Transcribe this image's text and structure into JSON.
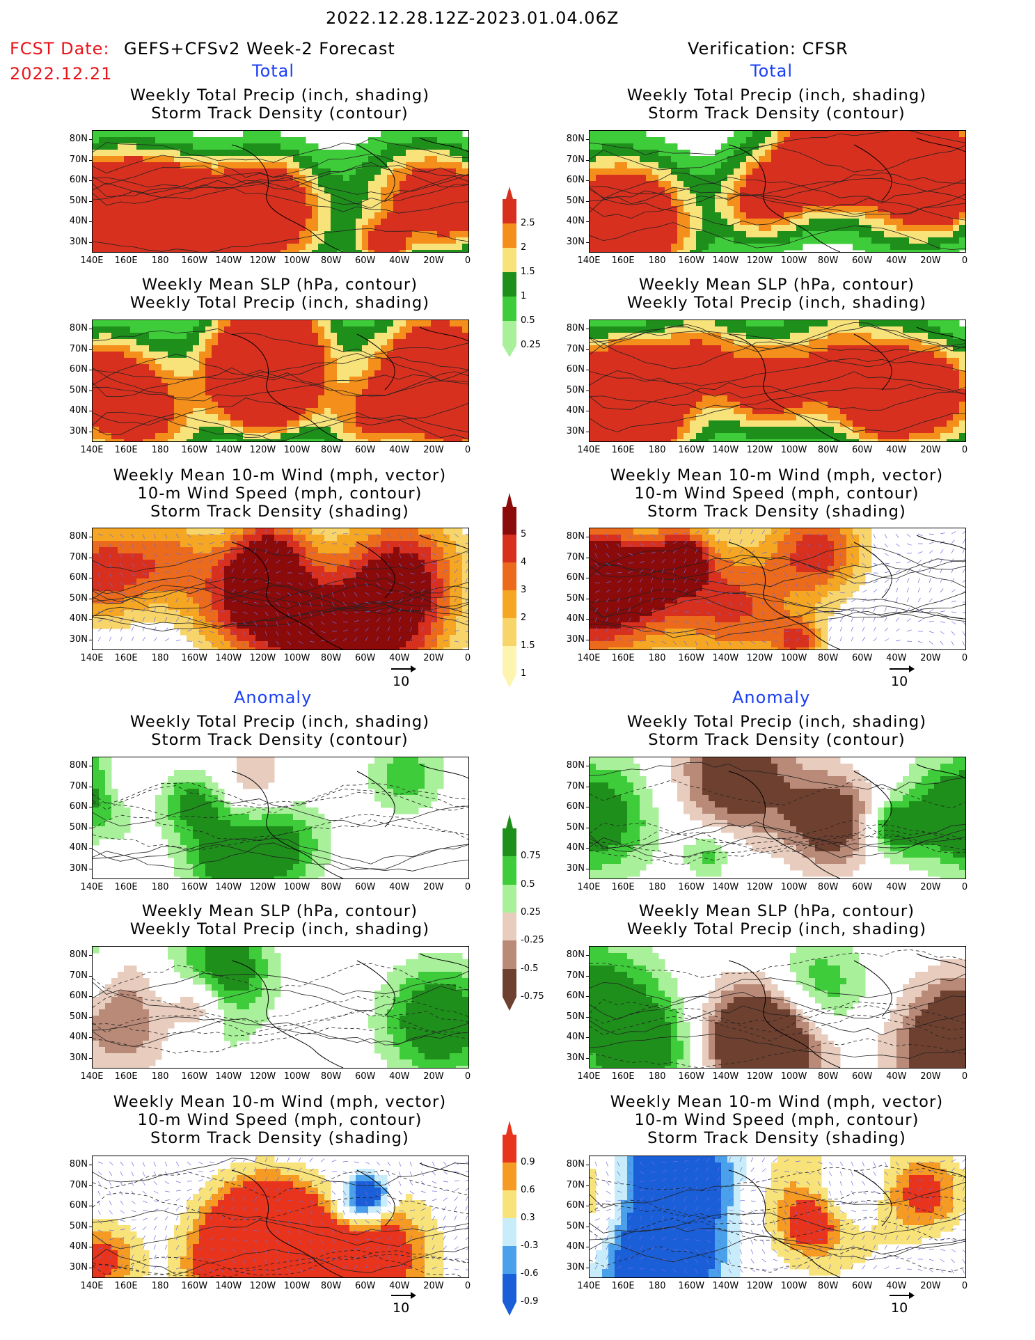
{
  "header": {
    "main_title": "2022.12.28.12Z-2023.01.04.06Z",
    "fcst_label": "FCST Date:",
    "forecast_title": "GEFS+CFSv2 Week-2 Forecast",
    "fcst_date": "2022.12.21",
    "verification_title": "Verification: CFSR"
  },
  "sections": {
    "total_label": "Total",
    "anomaly_label": "Anomaly"
  },
  "panel_titles": {
    "precip_storm": [
      "Weekly Total Precip (inch, shading)",
      "Storm Track Density (contour)"
    ],
    "slp_precip": [
      "Weekly Mean SLP (hPa, contour)",
      "Weekly Total Precip (inch, shading)"
    ],
    "wind_storm": [
      "Weekly Mean 10-m Wind (mph, vector)",
      "10-m Wind Speed (mph, contour)",
      "Storm Track Density (shading)"
    ]
  },
  "axes": {
    "lat_ticks": [
      "80N",
      "70N",
      "60N",
      "50N",
      "40N",
      "30N"
    ],
    "lon_ticks": [
      "140E",
      "160E",
      "180",
      "160W",
      "140W",
      "120W",
      "100W",
      "80W",
      "60W",
      "40W",
      "20W",
      "0"
    ]
  },
  "vector_reference": "10",
  "colorbars": {
    "precip_total": {
      "labels": [
        "2.5",
        "2",
        "1.5",
        "1",
        "0.5",
        "0.25"
      ],
      "colors": [
        "#d7301f",
        "#f58f1c",
        "#f8e27a",
        "#1f8f1c",
        "#3fcc3a",
        "#a8f09a"
      ]
    },
    "storm_total": {
      "labels": [
        "5",
        "4",
        "3",
        "2",
        "1.5",
        "1"
      ],
      "colors": [
        "#8b0a0a",
        "#d7301f",
        "#ec6a1c",
        "#f5a623",
        "#f8d56b",
        "#fdf4b0"
      ]
    },
    "precip_anom": {
      "labels": [
        "0.75",
        "0.5",
        "0.25",
        "-0.25",
        "-0.5",
        "-0.75"
      ],
      "colors": [
        "#1f8f1c",
        "#3fcc3a",
        "#a8f09a",
        "#e8cdbf",
        "#b98a78",
        "#6e4030"
      ]
    },
    "storm_anom": {
      "labels": [
        "0.9",
        "0.6",
        "0.3",
        "-0.3",
        "-0.6",
        "-0.9"
      ],
      "colors": [
        "#e8341c",
        "#f59a23",
        "#f8e27a",
        "#c9ecfb",
        "#4aa0ea",
        "#1a5fd8"
      ]
    }
  },
  "colors": {
    "land_line": "#000000",
    "wind_vector": "#6a6adf",
    "title_red": "#e8141a",
    "title_blue": "#1a3ff2"
  }
}
